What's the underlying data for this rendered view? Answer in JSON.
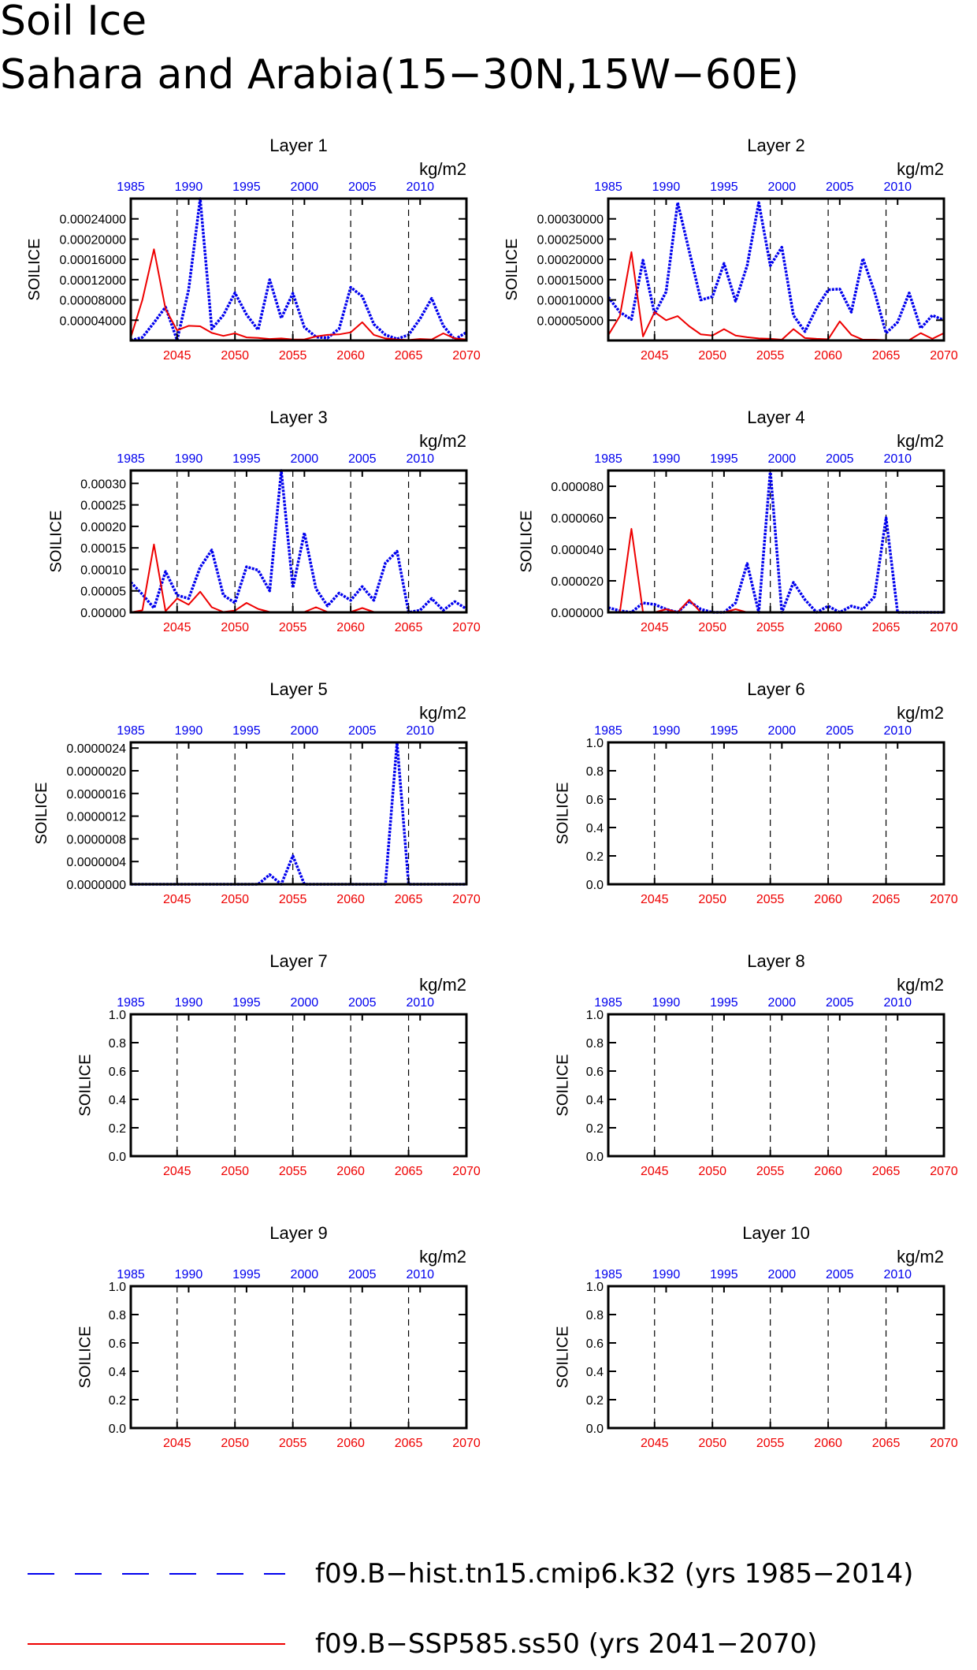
{
  "figure": {
    "title_line1": "Soil Ice",
    "title_line2": "Sahara and Arabia(15−30N,15W−60E)"
  },
  "colors": {
    "hist": "#0000ee",
    "ssp": "#ee0000",
    "axis": "#000000"
  },
  "legend": [
    {
      "label": "f09.B−hist.tn15.cmip6.k32 (yrs 1985−2014)",
      "color": "#0000ee",
      "style": "dashed"
    },
    {
      "label": "f09.B−SSP585.ss50 (yrs 2041−2070)",
      "color": "#ee0000",
      "style": "solid"
    }
  ],
  "chart_data": [
    {
      "type": "line",
      "title": "Layer 1",
      "ylabel": "SOILICE",
      "units": "kg/m2",
      "top_ticks": [
        "1985",
        "1990",
        "1995",
        "2000",
        "2005",
        "2010"
      ],
      "bottom_ticks": [
        "2045",
        "2050",
        "2055",
        "2060",
        "2065",
        "2070"
      ],
      "ylim": [
        0,
        0.00028
      ],
      "y_ticks": [
        "0.00004000",
        "0.00008000",
        "0.00012000",
        "0.00016000",
        "0.00020000",
        "0.00024000"
      ],
      "y_tick_values": [
        4e-05,
        8e-05,
        0.00012,
        0.00016,
        0.0002,
        0.00024
      ],
      "series": [
        {
          "name": "f09.B−hist.tn15.cmip6.k32",
          "years_start": 1985,
          "values": [
            1e-07,
            6e-06,
            3.5e-05,
            6.6e-05,
            5e-07,
            0.0001,
            0.00028,
            2.3e-05,
            5e-05,
            9.4e-05,
            5.1e-05,
            2.1e-05,
            0.00012,
            4.4e-05,
            9.3e-05,
            2.6e-05,
            7e-06,
            5e-06,
            2.3e-05,
            0.000105,
            8.7e-05,
            3.2e-05,
            1.1e-05,
            3e-06,
            1.1e-05,
            4.3e-05,
            8.3e-05,
            2.9e-05,
            2e-06,
            1.6e-05
          ]
        },
        {
          "name": "f09.B−SSP585.ss50",
          "years_start": 2041,
          "values": [
            6e-06,
            8e-05,
            0.00018,
            6.2e-05,
            2e-05,
            2.9e-05,
            2.8e-05,
            1.5e-05,
            9e-06,
            1.4e-05,
            6e-06,
            5e-06,
            3e-06,
            4e-06,
            2e-06,
            2e-06,
            8e-06,
            1.1e-05,
            1.2e-05,
            1.6e-05,
            3.6e-05,
            1.1e-05,
            4e-06,
            2e-06,
            1e-06,
            3e-06,
            2e-06,
            1.4e-05,
            4e-06,
            2e-06
          ]
        }
      ]
    },
    {
      "type": "line",
      "title": "Layer 2",
      "ylabel": "SOILICE",
      "units": "kg/m2",
      "top_ticks": [
        "1985",
        "1990",
        "1995",
        "2000",
        "2005",
        "2010"
      ],
      "bottom_ticks": [
        "2045",
        "2050",
        "2055",
        "2060",
        "2065",
        "2070"
      ],
      "ylim": [
        0,
        0.00035
      ],
      "y_ticks": [
        "0.00005000",
        "0.00010000",
        "0.00015000",
        "0.00020000",
        "0.00025000",
        "0.00030000"
      ],
      "y_tick_values": [
        5e-05,
        0.0001,
        0.00015,
        0.0002,
        0.00025,
        0.0003
      ],
      "series": [
        {
          "name": "f09.B−hist.tn15.cmip6.k32",
          "years_start": 1985,
          "values": [
            0.000107,
            7e-05,
            5.2e-05,
            0.000198,
            6.6e-05,
            0.00012,
            0.00034,
            0.00022,
            0.0001,
            0.000108,
            0.00019,
            9.7e-05,
            0.000185,
            0.00034,
            0.000185,
            0.00023,
            6.2e-05,
            2.2e-05,
            8e-05,
            0.000125,
            0.000127,
            7e-05,
            0.000202,
            0.00012,
            1.8e-05,
            4.5e-05,
            0.000117,
            3e-05,
            6.2e-05,
            5e-05
          ]
        },
        {
          "name": "f09.B−SSP585.ss50",
          "years_start": 2041,
          "values": [
            1.3e-05,
            6e-05,
            0.000218,
            1e-05,
            7e-05,
            5e-05,
            6e-05,
            3.5e-05,
            1.5e-05,
            1.2e-05,
            2.8e-05,
            1.2e-05,
            8e-06,
            5e-06,
            4e-06,
            2e-06,
            2.8e-05,
            6e-06,
            4e-06,
            3e-06,
            4.7e-05,
            1.4e-05,
            2e-06,
            2e-06,
            1e-06,
            1e-06,
            1e-06,
            1.8e-05,
            4e-06,
            1.8e-05
          ]
        }
      ]
    },
    {
      "type": "line",
      "title": "Layer 3",
      "ylabel": "SOILICE",
      "units": "kg/m2",
      "top_ticks": [
        "1985",
        "1990",
        "1995",
        "2000",
        "2005",
        "2010"
      ],
      "bottom_ticks": [
        "2045",
        "2050",
        "2055",
        "2060",
        "2065",
        "2070"
      ],
      "ylim": [
        0,
        0.00033
      ],
      "y_ticks": [
        "0.00000",
        "0.00005",
        "0.00010",
        "0.00015",
        "0.00020",
        "0.00025",
        "0.00030"
      ],
      "y_tick_values": [
        0,
        5e-05,
        0.0001,
        0.00015,
        0.0002,
        0.00025,
        0.0003
      ],
      "series": [
        {
          "name": "f09.B−hist.tn15.cmip6.k32",
          "years_start": 1985,
          "values": [
            7e-05,
            4.2e-05,
            1e-05,
            9.5e-05,
            4e-05,
            3.2e-05,
            0.000105,
            0.000145,
            4e-05,
            2.2e-05,
            0.000106,
            9.8e-05,
            5e-05,
            0.00033,
            5.7e-05,
            0.000185,
            5.5e-05,
            1.5e-05,
            4.5e-05,
            2.8e-05,
            6e-05,
            2.8e-05,
            0.000115,
            0.000142,
            0,
            5e-06,
            3.2e-05,
            5e-06,
            2.5e-05,
            8e-06
          ]
        },
        {
          "name": "f09.B−SSP585.ss50",
          "years_start": 2041,
          "values": [
            0,
            5e-06,
            0.000158,
            3e-06,
            3.2e-05,
            1.8e-05,
            4.8e-05,
            1.2e-05,
            1e-06,
            4e-06,
            2.2e-05,
            8e-06,
            1e-06,
            1e-06,
            1e-06,
            1e-06,
            1.2e-05,
            1e-06,
            1e-06,
            1e-06,
            1e-05,
            1e-06,
            1e-06,
            1e-06,
            1e-06,
            0,
            0,
            0,
            0,
            0
          ]
        }
      ]
    },
    {
      "type": "line",
      "title": "Layer 4",
      "ylabel": "SOILICE",
      "units": "kg/m2",
      "top_ticks": [
        "1985",
        "1990",
        "1995",
        "2000",
        "2005",
        "2010"
      ],
      "bottom_ticks": [
        "2045",
        "2050",
        "2055",
        "2060",
        "2065",
        "2070"
      ],
      "ylim": [
        0,
        9e-05
      ],
      "y_ticks": [
        "0.000000",
        "0.000020",
        "0.000040",
        "0.000060",
        "0.000080"
      ],
      "y_tick_values": [
        0,
        2e-05,
        4e-05,
        6e-05,
        8e-05
      ],
      "series": [
        {
          "name": "f09.B−hist.tn15.cmip6.k32",
          "years_start": 1985,
          "values": [
            3e-06,
            1e-06,
            0,
            6e-06,
            5e-06,
            2e-06,
            0,
            7e-06,
            2e-06,
            0,
            0,
            6e-06,
            3.1e-05,
            0,
            9e-05,
            0,
            1.9e-05,
            8e-06,
            0,
            4e-06,
            0,
            4e-06,
            2e-06,
            1e-05,
            6e-05,
            0,
            0,
            0,
            0,
            0
          ]
        },
        {
          "name": "f09.B−SSP585.ss50",
          "years_start": 2041,
          "values": [
            0,
            0,
            5.3e-05,
            0,
            0,
            2e-06,
            0,
            8e-06,
            0,
            0,
            0,
            2e-06,
            0,
            0,
            0,
            0,
            0,
            0,
            0,
            0,
            0,
            0,
            0,
            0,
            0,
            0,
            0,
            0,
            0,
            0
          ]
        }
      ]
    },
    {
      "type": "line",
      "title": "Layer 5",
      "ylabel": "SOILICE",
      "units": "kg/m2",
      "top_ticks": [
        "1985",
        "1990",
        "1995",
        "2000",
        "2005",
        "2010"
      ],
      "bottom_ticks": [
        "2045",
        "2050",
        "2055",
        "2060",
        "2065",
        "2070"
      ],
      "ylim": [
        0,
        2.5e-06
      ],
      "y_ticks": [
        "0.0000000",
        "0.0000004",
        "0.0000008",
        "0.0000012",
        "0.0000016",
        "0.0000020",
        "0.0000024"
      ],
      "y_tick_values": [
        0,
        4e-07,
        8e-07,
        1.2e-06,
        1.6e-06,
        2e-06,
        2.4e-06
      ],
      "series": [
        {
          "name": "f09.B−hist.tn15.cmip6.k32",
          "years_start": 1985,
          "values": [
            0,
            0,
            0,
            0,
            0,
            0,
            0,
            0,
            0,
            0,
            0,
            0,
            1.7e-07,
            0,
            5e-07,
            0,
            0,
            0,
            0,
            0,
            0,
            0,
            0,
            2.5e-06,
            0,
            0,
            0,
            0,
            0,
            0
          ]
        },
        {
          "name": "f09.B−SSP585.ss50",
          "years_start": 2041,
          "values": [
            0,
            0,
            0,
            0,
            0,
            0,
            0,
            0,
            0,
            0,
            0,
            0,
            0,
            0,
            0,
            0,
            0,
            0,
            0,
            0,
            0,
            0,
            0,
            0,
            0,
            0,
            0,
            0,
            0,
            0
          ]
        }
      ]
    },
    {
      "type": "line",
      "title": "Layer 6",
      "ylabel": "SOILICE",
      "units": "kg/m2",
      "top_ticks": [
        "1985",
        "1990",
        "1995",
        "2000",
        "2005",
        "2010"
      ],
      "bottom_ticks": [
        "2045",
        "2050",
        "2055",
        "2060",
        "2065",
        "2070"
      ],
      "ylim": [
        0,
        1
      ],
      "y_ticks": [
        "0.0",
        "0.2",
        "0.4",
        "0.6",
        "0.8",
        "1.0"
      ],
      "y_tick_values": [
        0,
        0.2,
        0.4,
        0.6,
        0.8,
        1.0
      ],
      "series": []
    },
    {
      "type": "line",
      "title": "Layer 7",
      "ylabel": "SOILICE",
      "units": "kg/m2",
      "top_ticks": [
        "1985",
        "1990",
        "1995",
        "2000",
        "2005",
        "2010"
      ],
      "bottom_ticks": [
        "2045",
        "2050",
        "2055",
        "2060",
        "2065",
        "2070"
      ],
      "ylim": [
        0,
        1
      ],
      "y_ticks": [
        "0.0",
        "0.2",
        "0.4",
        "0.6",
        "0.8",
        "1.0"
      ],
      "y_tick_values": [
        0,
        0.2,
        0.4,
        0.6,
        0.8,
        1.0
      ],
      "series": []
    },
    {
      "type": "line",
      "title": "Layer 8",
      "ylabel": "SOILICE",
      "units": "kg/m2",
      "top_ticks": [
        "1985",
        "1990",
        "1995",
        "2000",
        "2005",
        "2010"
      ],
      "bottom_ticks": [
        "2045",
        "2050",
        "2055",
        "2060",
        "2065",
        "2070"
      ],
      "ylim": [
        0,
        1
      ],
      "y_ticks": [
        "0.0",
        "0.2",
        "0.4",
        "0.6",
        "0.8",
        "1.0"
      ],
      "y_tick_values": [
        0,
        0.2,
        0.4,
        0.6,
        0.8,
        1.0
      ],
      "series": []
    },
    {
      "type": "line",
      "title": "Layer 9",
      "ylabel": "SOILICE",
      "units": "kg/m2",
      "top_ticks": [
        "1985",
        "1990",
        "1995",
        "2000",
        "2005",
        "2010"
      ],
      "bottom_ticks": [
        "2045",
        "2050",
        "2055",
        "2060",
        "2065",
        "2070"
      ],
      "ylim": [
        0,
        1
      ],
      "y_ticks": [
        "0.0",
        "0.2",
        "0.4",
        "0.6",
        "0.8",
        "1.0"
      ],
      "y_tick_values": [
        0,
        0.2,
        0.4,
        0.6,
        0.8,
        1.0
      ],
      "series": []
    },
    {
      "type": "line",
      "title": "Layer 10",
      "ylabel": "SOILICE",
      "units": "kg/m2",
      "top_ticks": [
        "1985",
        "1990",
        "1995",
        "2000",
        "2005",
        "2010"
      ],
      "bottom_ticks": [
        "2045",
        "2050",
        "2055",
        "2060",
        "2065",
        "2070"
      ],
      "ylim": [
        0,
        1
      ],
      "y_ticks": [
        "0.0",
        "0.2",
        "0.4",
        "0.6",
        "0.8",
        "1.0"
      ],
      "y_tick_values": [
        0,
        0.2,
        0.4,
        0.6,
        0.8,
        1.0
      ],
      "series": []
    }
  ]
}
